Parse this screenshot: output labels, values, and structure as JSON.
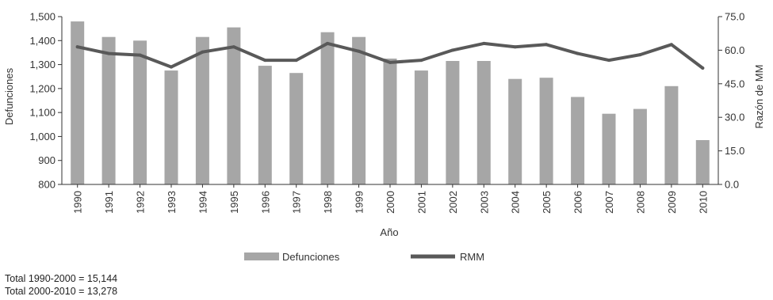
{
  "chart_data": {
    "type": "bar",
    "x": [
      "1990",
      "1991",
      "1992",
      "1993",
      "1994",
      "1995",
      "1996",
      "1997",
      "1998",
      "1999",
      "2000",
      "2001",
      "2002",
      "2003",
      "2004",
      "2005",
      "2006",
      "2007",
      "2008",
      "2009",
      "2010"
    ],
    "series": [
      {
        "name": "Defunciones",
        "type": "bar",
        "axis": "left",
        "color": "#a6a6a6",
        "values": [
          1480,
          1415,
          1400,
          1275,
          1415,
          1455,
          1295,
          1265,
          1435,
          1415,
          1325,
          1275,
          1315,
          1315,
          1240,
          1245,
          1165,
          1095,
          1115,
          1210,
          985
        ]
      },
      {
        "name": "RMM",
        "type": "line",
        "axis": "right",
        "color": "#595959",
        "values": [
          61.5,
          58.5,
          57.8,
          52.5,
          59.2,
          61.5,
          55.5,
          55.5,
          63.0,
          59.5,
          54.5,
          55.5,
          60.0,
          63.0,
          61.5,
          62.5,
          58.5,
          55.5,
          58.0,
          62.5,
          52.0
        ]
      }
    ],
    "xlabel": "Año",
    "ylabel": "Defunciones",
    "ylabel_right": "Razón de MM",
    "ylim": [
      800,
      1500
    ],
    "ylim_right": [
      0,
      75
    ],
    "yticks": [
      "800",
      "900",
      "1,000",
      "1,100",
      "1,200",
      "1,300",
      "1,400",
      "1,500"
    ],
    "yticks_values": [
      800,
      900,
      1000,
      1100,
      1200,
      1300,
      1400,
      1500
    ],
    "yticks_right": [
      "0.0",
      "15.0",
      "30.0",
      "45.0",
      "60.0",
      "75.0"
    ],
    "yticks_right_values": [
      0,
      15,
      30,
      45,
      60,
      75
    ],
    "grid": false,
    "legend": "bottom-center"
  },
  "footnotes": [
    "Total 1990-2000 = 15,144",
    "Total 2000-2010 = 13,278"
  ]
}
